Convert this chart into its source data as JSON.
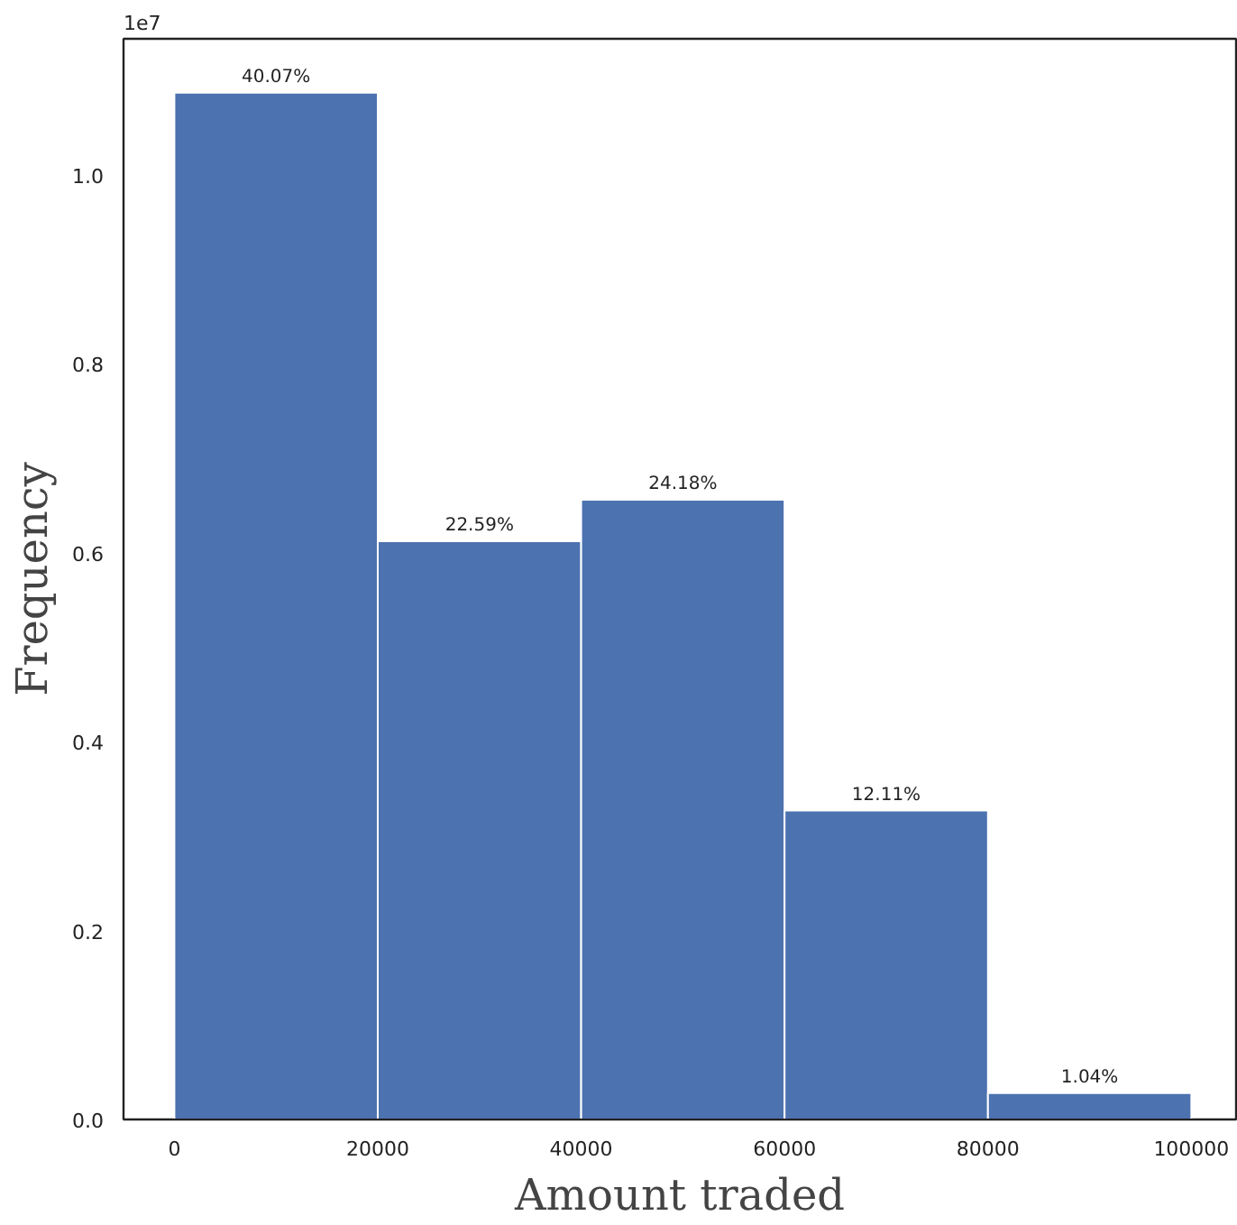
{
  "chart_data": {
    "type": "histogram",
    "xlabel": "Amount traded",
    "ylabel": "Frequency",
    "bins": [
      0,
      20000,
      40000,
      60000,
      80000,
      100000
    ],
    "values": [
      1.087,
      0.612,
      0.656,
      0.327,
      0.028
    ],
    "color": "#4c72b0",
    "xlim": [
      -5000,
      104400
    ],
    "ylim": [
      0,
      1.144
    ],
    "xticks": [
      0,
      20000,
      40000,
      60000,
      80000,
      100000
    ],
    "yticks": [
      {
        "value": 0,
        "label": "0.0"
      },
      {
        "value": 0.2,
        "label": "0.2"
      },
      {
        "value": 0.4,
        "label": "0.4"
      },
      {
        "value": 0.6,
        "label": "0.6"
      },
      {
        "value": 0.8,
        "label": "0.8"
      },
      {
        "value": 1.0,
        "label": "1.0"
      }
    ],
    "annotations": [
      "1e7",
      {
        "text": "40.07%",
        "x": 10000,
        "y": 1.087
      },
      {
        "text": "22.59%",
        "x": 30000,
        "y": 0.612
      },
      {
        "text": "24.18%",
        "x": 50000,
        "y": 0.656
      },
      {
        "text": "12.11%",
        "x": 70000,
        "y": 0.327
      },
      {
        "text": "1.04%",
        "x": 90000,
        "y": 0.028
      }
    ],
    "grid": false
  }
}
